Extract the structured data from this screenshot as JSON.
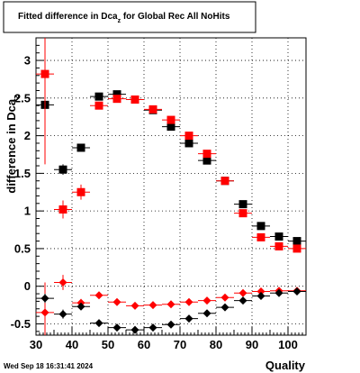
{
  "chart_data": {
    "type": "scatter",
    "title_main": "Fitted difference in Dca",
    "title_sub": "z",
    "title_rest": " for Global Rec All NoHits",
    "ylabel_main": "difference in Dca",
    "ylabel_sub": "z",
    "xlabel": "Quality",
    "footer": "Wed Sep 18 16:31:41 2024",
    "xlim": [
      30,
      105
    ],
    "ylim": [
      -0.65,
      3.3
    ],
    "xticks": [
      30,
      40,
      50,
      60,
      70,
      80,
      90,
      100
    ],
    "xtick_labels": [
      "30",
      "40",
      "50",
      "60",
      "70",
      "80",
      "90",
      "100"
    ],
    "yticks": [
      -0.5,
      0,
      0.5,
      1,
      1.5,
      2,
      2.5,
      3
    ],
    "ytick_labels": [
      "-0.5",
      "0",
      "0.5",
      "1",
      "1.5",
      "2",
      "2.5",
      "3"
    ],
    "grid": true,
    "series": [
      {
        "marker": "square",
        "color": "#000000",
        "points": [
          {
            "x": 32.5,
            "y": 2.41,
            "ey": 0.08
          },
          {
            "x": 37.5,
            "y": 1.55,
            "ey": 0.07
          },
          {
            "x": 42.5,
            "y": 1.84,
            "ey": 0.05
          },
          {
            "x": 47.5,
            "y": 2.52,
            "ey": 0.02
          },
          {
            "x": 52.5,
            "y": 2.55,
            "ey": 0.02
          },
          {
            "x": 57.5,
            "y": 2.48,
            "ey": 0.02
          },
          {
            "x": 62.5,
            "y": 2.34,
            "ey": 0.02
          },
          {
            "x": 67.5,
            "y": 2.12,
            "ey": 0.02
          },
          {
            "x": 72.5,
            "y": 1.9,
            "ey": 0.02
          },
          {
            "x": 77.5,
            "y": 1.67,
            "ey": 0.02
          },
          {
            "x": 82.5,
            "y": 1.4,
            "ey": 0.02
          },
          {
            "x": 87.5,
            "y": 1.09,
            "ey": 0.02
          },
          {
            "x": 92.5,
            "y": 0.8,
            "ey": 0.02
          },
          {
            "x": 97.5,
            "y": 0.66,
            "ey": 0.02
          },
          {
            "x": 102.5,
            "y": 0.6,
            "ey": 0.02
          }
        ]
      },
      {
        "marker": "square",
        "color": "#ff0000",
        "points": [
          {
            "x": 32.5,
            "y": 2.82,
            "ey": 1.2
          },
          {
            "x": 37.5,
            "y": 1.02,
            "ey": 0.12
          },
          {
            "x": 42.5,
            "y": 1.25,
            "ey": 0.1
          },
          {
            "x": 47.5,
            "y": 2.4,
            "ey": 0.05
          },
          {
            "x": 52.5,
            "y": 2.49,
            "ey": 0.03
          },
          {
            "x": 57.5,
            "y": 2.48,
            "ey": 0.03
          },
          {
            "x": 62.5,
            "y": 2.35,
            "ey": 0.02
          },
          {
            "x": 67.5,
            "y": 2.21,
            "ey": 0.02
          },
          {
            "x": 72.5,
            "y": 2.0,
            "ey": 0.02
          },
          {
            "x": 77.5,
            "y": 1.76,
            "ey": 0.02
          },
          {
            "x": 82.5,
            "y": 1.4,
            "ey": 0.02
          },
          {
            "x": 87.5,
            "y": 0.97,
            "ey": 0.02
          },
          {
            "x": 92.5,
            "y": 0.65,
            "ey": 0.02
          },
          {
            "x": 97.5,
            "y": 0.53,
            "ey": 0.02
          },
          {
            "x": 102.5,
            "y": 0.5,
            "ey": 0.02
          }
        ]
      },
      {
        "marker": "diamond",
        "color": "#ff0000",
        "points": [
          {
            "x": 32.5,
            "y": -0.35,
            "ey": 0.4
          },
          {
            "x": 37.5,
            "y": 0.05,
            "ey": 0.1
          },
          {
            "x": 42.5,
            "y": -0.22,
            "ey": 0.05
          },
          {
            "x": 47.5,
            "y": -0.12,
            "ey": 0.03
          },
          {
            "x": 52.5,
            "y": -0.21,
            "ey": 0.02
          },
          {
            "x": 57.5,
            "y": -0.26,
            "ey": 0.02
          },
          {
            "x": 62.5,
            "y": -0.25,
            "ey": 0.02
          },
          {
            "x": 67.5,
            "y": -0.24,
            "ey": 0.02
          },
          {
            "x": 72.5,
            "y": -0.21,
            "ey": 0.02
          },
          {
            "x": 77.5,
            "y": -0.19,
            "ey": 0.02
          },
          {
            "x": 82.5,
            "y": -0.15,
            "ey": 0.02
          },
          {
            "x": 87.5,
            "y": -0.09,
            "ey": 0.02
          },
          {
            "x": 92.5,
            "y": -0.07,
            "ey": 0.02
          },
          {
            "x": 97.5,
            "y": -0.06,
            "ey": 0.02
          },
          {
            "x": 102.5,
            "y": -0.06,
            "ey": 0.02
          }
        ]
      },
      {
        "marker": "diamond",
        "color": "#000000",
        "points": [
          {
            "x": 32.5,
            "y": -0.16,
            "ey": 0.06
          },
          {
            "x": 37.5,
            "y": -0.37,
            "ey": 0.06
          },
          {
            "x": 42.5,
            "y": -0.27,
            "ey": 0.04
          },
          {
            "x": 47.5,
            "y": -0.49,
            "ey": 0.02
          },
          {
            "x": 52.5,
            "y": -0.55,
            "ey": 0.02
          },
          {
            "x": 57.5,
            "y": -0.58,
            "ey": 0.02
          },
          {
            "x": 62.5,
            "y": -0.55,
            "ey": 0.02
          },
          {
            "x": 67.5,
            "y": -0.51,
            "ey": 0.02
          },
          {
            "x": 72.5,
            "y": -0.43,
            "ey": 0.02
          },
          {
            "x": 77.5,
            "y": -0.36,
            "ey": 0.02
          },
          {
            "x": 82.5,
            "y": -0.28,
            "ey": 0.02
          },
          {
            "x": 87.5,
            "y": -0.19,
            "ey": 0.02
          },
          {
            "x": 92.5,
            "y": -0.13,
            "ey": 0.02
          },
          {
            "x": 97.5,
            "y": -0.09,
            "ey": 0.02
          },
          {
            "x": 102.5,
            "y": -0.07,
            "ey": 0.02
          }
        ]
      }
    ]
  }
}
